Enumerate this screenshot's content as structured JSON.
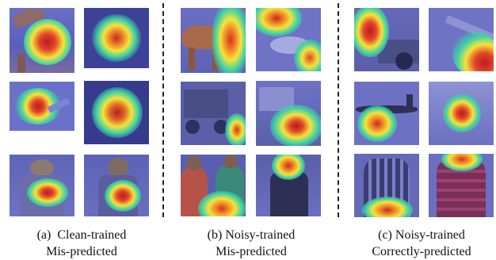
{
  "figure": {
    "groups": [
      {
        "id": "a",
        "caption_line1": "(a)  Clean-trained",
        "caption_line2": "Mis-predicted"
      },
      {
        "id": "b",
        "caption_line1": "(b) Noisy-trained",
        "caption_line2": "Mis-predicted"
      },
      {
        "id": "c",
        "caption_line1": "(c) Noisy-trained",
        "caption_line2": "Correctly-predicted"
      }
    ],
    "colors": {
      "overlay_base": "#4b4fb8",
      "heat_core": "#b81d1d",
      "heat_mid": "#f4e43a",
      "heat_edge": "#3fd2a6",
      "divider": "#222222"
    },
    "tiles": [
      {
        "name": "clean-horse-heatmap",
        "subject": "horse",
        "group": "a"
      },
      {
        "name": "clean-noise-blob-heatmap-1",
        "subject": "noise",
        "group": "a"
      },
      {
        "name": "clean-airplane-heatmap",
        "subject": "airplane",
        "group": "a"
      },
      {
        "name": "clean-noise-blob-heatmap-2",
        "subject": "noise",
        "group": "a"
      },
      {
        "name": "clean-jacket-heatmap-1",
        "subject": "jacket",
        "group": "a"
      },
      {
        "name": "clean-jacket-heatmap-2",
        "subject": "jacket",
        "group": "a"
      },
      {
        "name": "noisy-horse-heatmap",
        "subject": "horse",
        "group": "b"
      },
      {
        "name": "noisy-table-heatmap",
        "subject": "table",
        "group": "b"
      },
      {
        "name": "noisy-truck-heatmap",
        "subject": "truck",
        "group": "b"
      },
      {
        "name": "noisy-truck-wheel-heatmap",
        "subject": "truck",
        "group": "b"
      },
      {
        "name": "noisy-people-heatmap",
        "subject": "people",
        "group": "b"
      },
      {
        "name": "noisy-jacket-heatmap",
        "subject": "jacket",
        "group": "b"
      },
      {
        "name": "correct-car-heatmap",
        "subject": "car",
        "group": "c"
      },
      {
        "name": "correct-airplane-tail-heatmap",
        "subject": "airplane",
        "group": "c"
      },
      {
        "name": "correct-airplane-heatmap",
        "subject": "airplane",
        "group": "c"
      },
      {
        "name": "correct-noise-blob-heatmap",
        "subject": "noise",
        "group": "c"
      },
      {
        "name": "correct-plaid-jacket-heatmap",
        "subject": "jacket",
        "group": "c"
      },
      {
        "name": "correct-puffer-jacket-heatmap",
        "subject": "jacket",
        "group": "c"
      }
    ]
  }
}
